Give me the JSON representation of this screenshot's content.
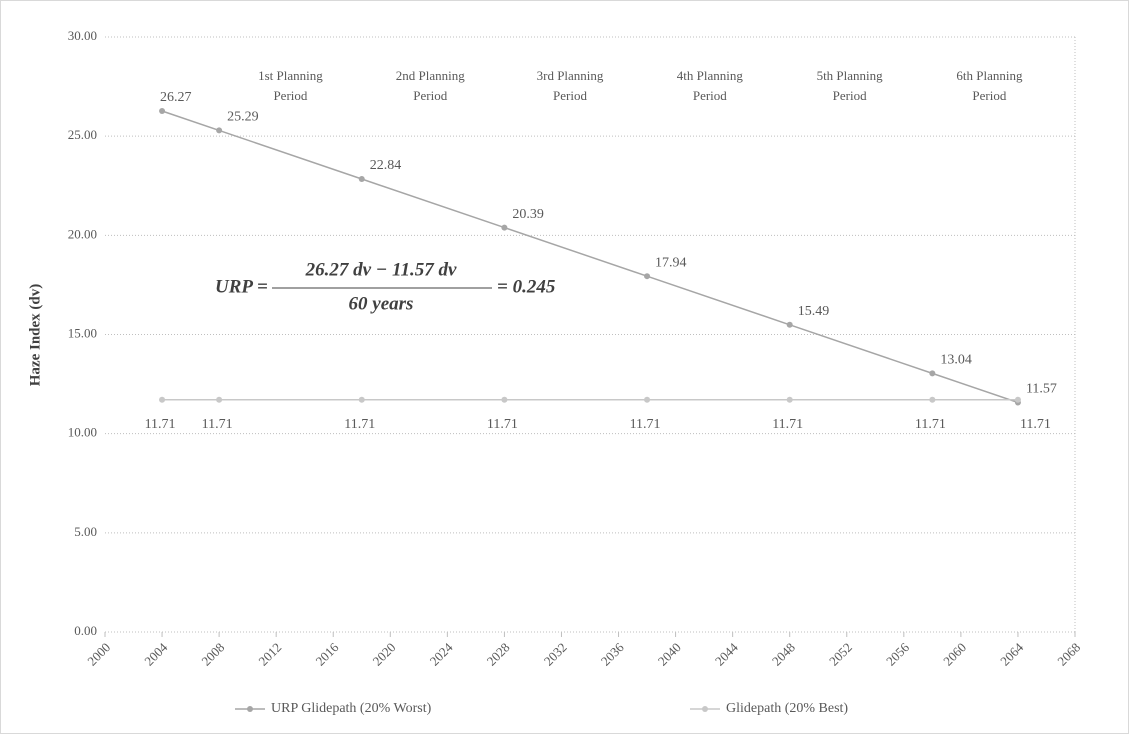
{
  "chart_data": {
    "type": "line",
    "y_label": "Haze Index (dv)",
    "x": [
      2004,
      2008,
      2018,
      2028,
      2038,
      2048,
      2058,
      2064
    ],
    "series": [
      {
        "name": "URP Glidepath (20% Worst)",
        "color": "#a6a6a6",
        "values": [
          26.27,
          25.29,
          22.84,
          20.39,
          17.94,
          15.49,
          13.04,
          11.57
        ]
      },
      {
        "name": "Glidepath (20% Best)",
        "color": "#c8c8c8",
        "values": [
          11.71,
          11.71,
          11.71,
          11.71,
          11.71,
          11.71,
          11.71,
          11.71
        ]
      }
    ],
    "xlim": [
      2000,
      2068
    ],
    "xticks": [
      2000,
      2004,
      2008,
      2012,
      2016,
      2020,
      2024,
      2028,
      2032,
      2036,
      2040,
      2044,
      2048,
      2052,
      2056,
      2060,
      2064,
      2068
    ],
    "ylim": [
      0,
      30
    ],
    "yticks": [
      {
        "value": 0,
        "label": "0.00"
      },
      {
        "value": 5,
        "label": "5.00"
      },
      {
        "value": 10,
        "label": "10.00"
      },
      {
        "value": 15,
        "label": "15.00"
      },
      {
        "value": 20,
        "label": "20.00"
      },
      {
        "value": 25,
        "label": "25.00"
      },
      {
        "value": 30,
        "label": "30.00"
      }
    ],
    "grid": true,
    "planning_periods": [
      {
        "line1": "1st Planning",
        "line2": "Period"
      },
      {
        "line1": "2nd Planning",
        "line2": "Period"
      },
      {
        "line1": "3rd Planning",
        "line2": "Period"
      },
      {
        "line1": "4th Planning",
        "line2": "Period"
      },
      {
        "line1": "5th Planning",
        "line2": "Period"
      },
      {
        "line1": "6th Planning",
        "line2": "Period"
      }
    ],
    "equation": {
      "lhs": "URP =",
      "numerator": "26.27 dv − 11.57 dv",
      "denominator": "60 years",
      "rhs": "= 0.245"
    }
  }
}
